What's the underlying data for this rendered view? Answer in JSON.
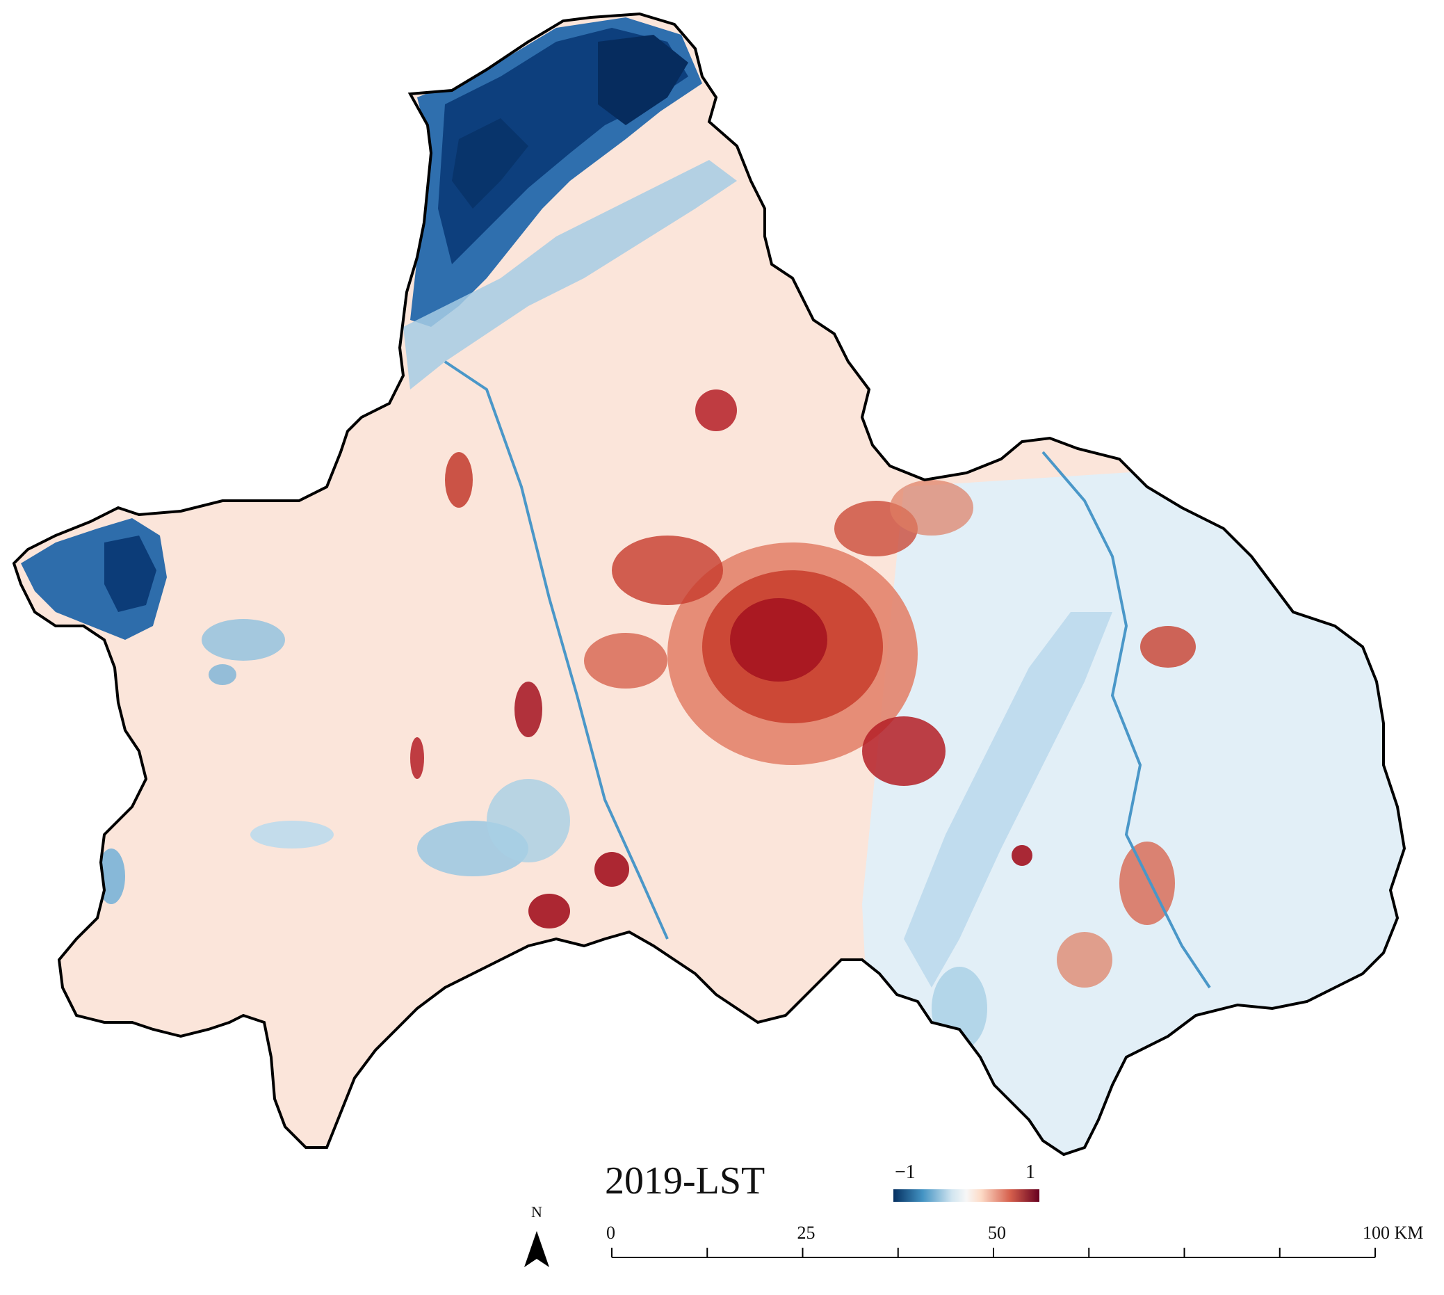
{
  "map": {
    "title": "2019-LST",
    "legend": {
      "min_label": "−1",
      "max_label": "1",
      "min_value": -1,
      "max_value": 1,
      "colors": [
        "#053061",
        "#2166ac",
        "#4393c3",
        "#92c5de",
        "#d1e5f0",
        "#f7f7f7",
        "#fddbc7",
        "#f4a582",
        "#d6604d",
        "#b2182b",
        "#67001f"
      ]
    },
    "north_arrow": {
      "label": "N",
      "icon": "north-arrow-icon"
    },
    "scale_bar": {
      "labels": [
        "0",
        "25",
        "50",
        "100 KM"
      ],
      "values": [
        0,
        25,
        50,
        100
      ],
      "max_km": 100,
      "minor_divisions": 8
    },
    "colors": {
      "boundary": "#000000",
      "background_warm": "#fbe6dc",
      "background_cool": "#e4f0f7",
      "hot": "#a50f22",
      "cold": "#0b3d7a"
    }
  }
}
